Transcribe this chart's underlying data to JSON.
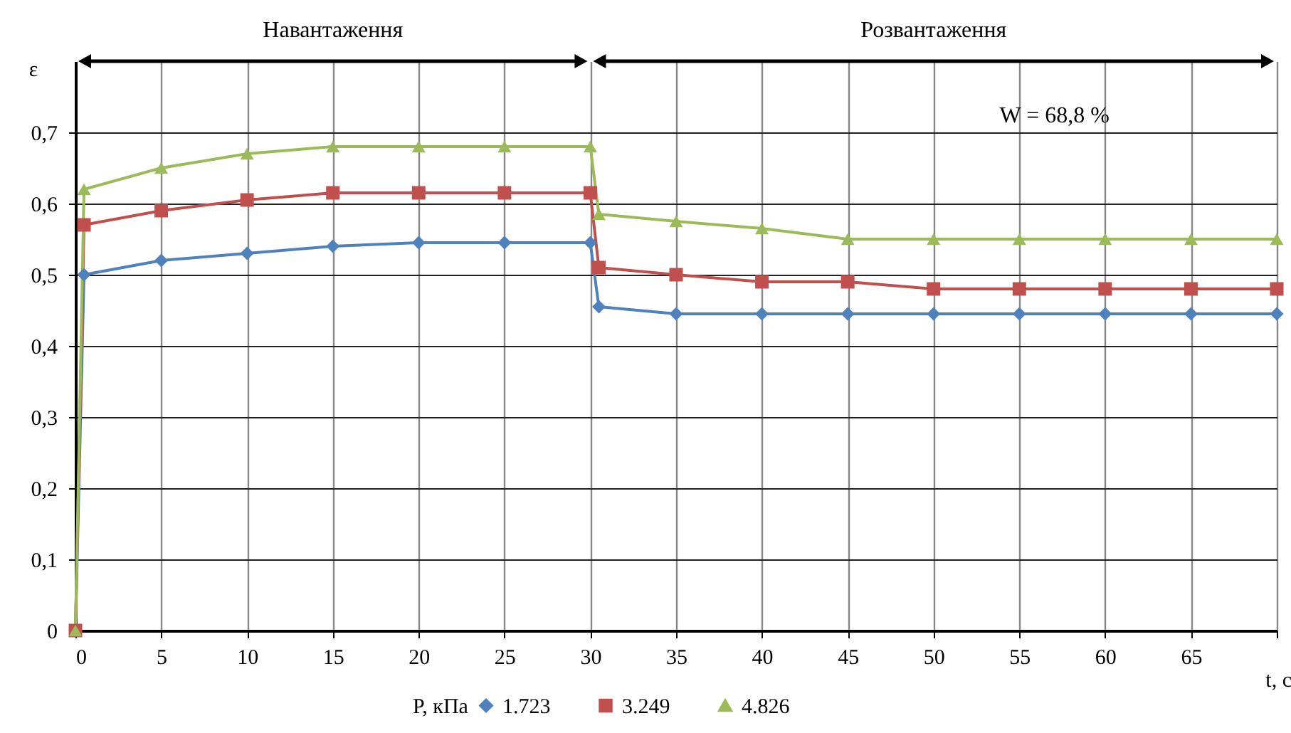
{
  "chart_data": {
    "type": "line",
    "xlabel": "t, c",
    "ylabel": "ε",
    "legend_title": "P, кПа",
    "x": [
      0,
      0.5,
      5,
      10,
      15,
      20,
      25,
      30,
      30.5,
      35,
      40,
      45,
      50,
      55,
      60,
      65,
      70
    ],
    "series": [
      {
        "name": "1.723",
        "color": "#4f81bd",
        "marker": "diamond",
        "values": [
          0,
          0.5,
          0.52,
          0.53,
          0.54,
          0.545,
          0.545,
          0.545,
          0.455,
          0.445,
          0.445,
          0.445,
          0.445,
          0.445,
          0.445,
          0.445,
          0.445
        ]
      },
      {
        "name": "3.249",
        "color": "#c0504d",
        "marker": "square",
        "values": [
          0,
          0.57,
          0.59,
          0.605,
          0.615,
          0.615,
          0.615,
          0.615,
          0.51,
          0.5,
          0.49,
          0.49,
          0.48,
          0.48,
          0.48,
          0.48,
          0.48
        ]
      },
      {
        "name": "4.826",
        "color": "#9bbb59",
        "marker": "triangle",
        "values": [
          0,
          0.62,
          0.65,
          0.67,
          0.68,
          0.68,
          0.68,
          0.68,
          0.585,
          0.575,
          0.565,
          0.55,
          0.55,
          0.55,
          0.55,
          0.55,
          0.55
        ]
      }
    ],
    "xlim": [
      0,
      70
    ],
    "xticks": [
      0,
      5,
      10,
      15,
      20,
      25,
      30,
      35,
      40,
      45,
      50,
      55,
      60,
      65,
      {
        "value": 70,
        "label": null
      }
    ],
    "ylim": [
      0,
      0.8
    ],
    "yticks": [
      0,
      {
        "value": 0.1,
        "label": "0,1"
      },
      {
        "value": 0.2,
        "label": "0,2"
      },
      {
        "value": 0.3,
        "label": "0,3"
      },
      {
        "value": 0.4,
        "label": "0,4"
      },
      {
        "value": 0.5,
        "label": "0,5"
      },
      {
        "value": 0.6,
        "label": "0,6"
      },
      {
        "value": 0.7,
        "label": "0,7"
      }
    ],
    "annotations": [
      "Навантаження",
      "Розвантаження",
      "W = 68,8 %"
    ],
    "grid": true,
    "legend": "bottom",
    "line_style": "solid"
  }
}
